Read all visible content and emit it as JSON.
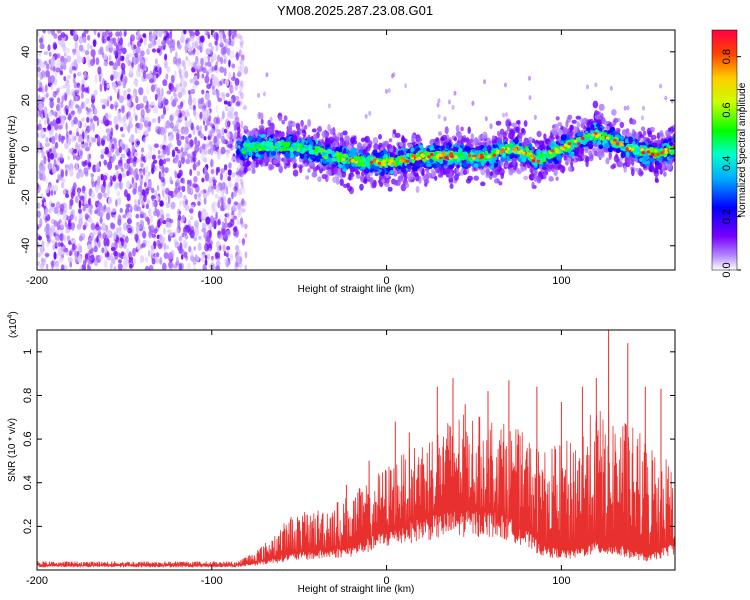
{
  "title": "YM08.2025.287.23.08.G01",
  "chart_data": [
    {
      "type": "heatmap",
      "title": "YM08.2025.287.23.08.G01",
      "xlabel": "Height of straight line (km)",
      "ylabel": "Frequency (Hz)",
      "xlim": [
        -200,
        165
      ],
      "ylim": [
        -50,
        49
      ],
      "xticks": [
        "-200",
        "-100",
        "0",
        "100"
      ],
      "xtick_values": [
        -200,
        -100,
        0,
        100
      ],
      "yticks": [
        "40",
        "20",
        "0",
        "-20",
        "-40"
      ],
      "ytick_values": [
        40,
        20,
        0,
        -20,
        -40
      ],
      "noise_region_km": [
        -200,
        -85
      ],
      "plume_start_km": -85,
      "plume_end_km": 165,
      "center_frequency_track": [
        {
          "x": -85,
          "y": 0
        },
        {
          "x": -70,
          "y": 1
        },
        {
          "x": -55,
          "y": 1
        },
        {
          "x": -40,
          "y": -1
        },
        {
          "x": -20,
          "y": -5
        },
        {
          "x": 0,
          "y": -6
        },
        {
          "x": 20,
          "y": -3
        },
        {
          "x": 40,
          "y": -3
        },
        {
          "x": 60,
          "y": -3
        },
        {
          "x": 70,
          "y": 0
        },
        {
          "x": 80,
          "y": -1
        },
        {
          "x": 85,
          "y": -5
        },
        {
          "x": 100,
          "y": 0
        },
        {
          "x": 120,
          "y": 6
        },
        {
          "x": 140,
          "y": 0
        },
        {
          "x": 155,
          "y": -2
        },
        {
          "x": 165,
          "y": 0
        }
      ],
      "colorbar": {
        "label": "Normalized spectral amplitude",
        "range": [
          0,
          0.9
        ],
        "ticks": [
          "0.0",
          "0.2",
          "0.4",
          "0.6",
          "0.8"
        ],
        "tick_values": [
          0,
          0.2,
          0.4,
          0.6,
          0.8
        ]
      }
    },
    {
      "type": "line",
      "xlabel": "Height of straight line (km)",
      "ylabel": "SNR (10 * v/v)",
      "scale_label": "(x10",
      "scale_exponent": "4",
      "scale_close": ")",
      "xlim": [
        -200,
        165
      ],
      "ylim": [
        0,
        1.1
      ],
      "xticks": [
        "-200",
        "-100",
        "0",
        "100"
      ],
      "xtick_values": [
        -200,
        -100,
        0,
        100
      ],
      "yticks": [
        "0.2",
        "0.4",
        "0.6",
        "0.8",
        "1"
      ],
      "ytick_values": [
        0.2,
        0.4,
        0.6,
        0.8,
        1.0
      ],
      "series": [
        {
          "name": "SNR",
          "color": "#e8302f",
          "envelope": [
            {
              "x": -200,
              "base": 0.02,
              "peak": 0.04
            },
            {
              "x": -120,
              "base": 0.02,
              "peak": 0.04
            },
            {
              "x": -85,
              "base": 0.02,
              "peak": 0.04
            },
            {
              "x": -70,
              "base": 0.04,
              "peak": 0.12
            },
            {
              "x": -55,
              "base": 0.07,
              "peak": 0.25
            },
            {
              "x": -40,
              "base": 0.08,
              "peak": 0.28
            },
            {
              "x": -20,
              "base": 0.1,
              "peak": 0.35
            },
            {
              "x": 0,
              "base": 0.17,
              "peak": 0.48
            },
            {
              "x": 20,
              "base": 0.22,
              "peak": 0.6
            },
            {
              "x": 40,
              "base": 0.25,
              "peak": 0.72
            },
            {
              "x": 60,
              "base": 0.25,
              "peak": 0.7
            },
            {
              "x": 75,
              "base": 0.2,
              "peak": 0.65
            },
            {
              "x": 90,
              "base": 0.1,
              "peak": 0.55
            },
            {
              "x": 105,
              "base": 0.08,
              "peak": 0.6
            },
            {
              "x": 120,
              "base": 0.12,
              "peak": 0.75
            },
            {
              "x": 135,
              "base": 0.1,
              "peak": 0.7
            },
            {
              "x": 150,
              "base": 0.06,
              "peak": 0.6
            },
            {
              "x": 165,
              "base": 0.12,
              "peak": 0.5
            }
          ],
          "spikes": [
            {
              "x": -23,
              "y": 0.39
            },
            {
              "x": -10,
              "y": 0.5
            },
            {
              "x": 5,
              "y": 0.68
            },
            {
              "x": 13,
              "y": 0.63
            },
            {
              "x": 29,
              "y": 0.84
            },
            {
              "x": 38,
              "y": 0.88
            },
            {
              "x": 45,
              "y": 0.76
            },
            {
              "x": 58,
              "y": 0.82
            },
            {
              "x": 70,
              "y": 0.87
            },
            {
              "x": 86,
              "y": 0.84
            },
            {
              "x": 100,
              "y": 0.77
            },
            {
              "x": 112,
              "y": 0.84
            },
            {
              "x": 120,
              "y": 0.88
            },
            {
              "x": 127,
              "y": 1.1
            },
            {
              "x": 138,
              "y": 1.04
            },
            {
              "x": 148,
              "y": 0.84
            },
            {
              "x": 157,
              "y": 0.83
            }
          ]
        }
      ]
    }
  ]
}
